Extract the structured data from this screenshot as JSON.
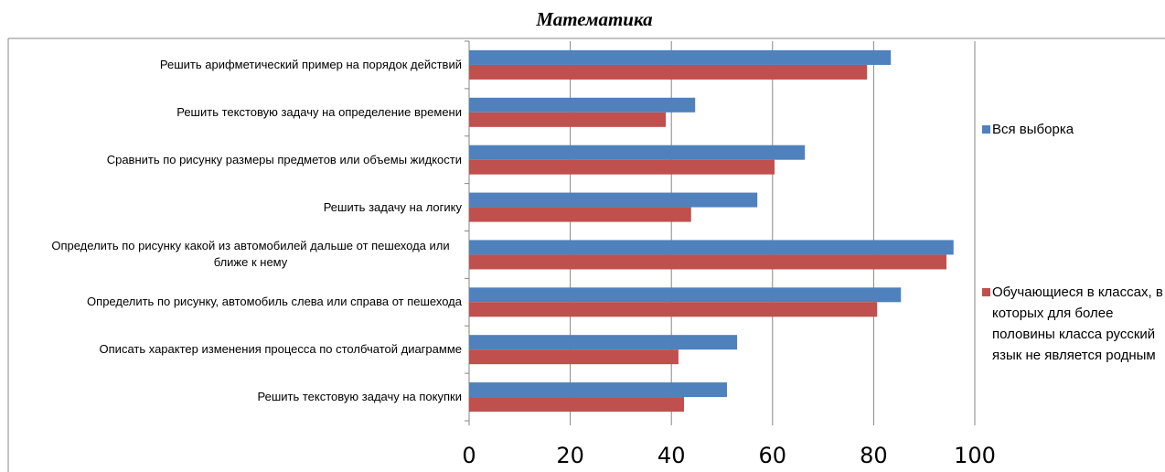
{
  "chart_data": {
    "type": "barh",
    "title": "Математика",
    "categories": [
      "Решить арифметический пример на порядок действий",
      "Решить текстовую задачу на определение времени",
      "Сравнить по рисунку размеры предметов или объемы жидкости",
      "Решить задачу на логику",
      "Определить по рисунку какой из автомобилей дальше от пешехода или ближе к нему",
      "Определить по рисунку, автомобиль слева или справа от пешехода",
      "Описать характер изменения процесса по столбчатой диаграмме",
      "Решить текстовую задачу на покупки"
    ],
    "series": [
      {
        "name": "Вся выборка",
        "color": "#4f81bd",
        "values": [
          83.4,
          44.7,
          66.4,
          57,
          95.8,
          85.4,
          53,
          51
        ]
      },
      {
        "name": "Обучающиеся в классах, в которых для более половины класса русский язык не является родным",
        "color": "#c0504d",
        "values": [
          78.7,
          38.9,
          60.4,
          43.9,
          94.4,
          80.7,
          41.4,
          42.5
        ]
      }
    ],
    "xlim": [
      0,
      100
    ],
    "xticks": [
      0,
      20,
      40,
      60,
      80,
      100
    ],
    "grid": true,
    "legend": "right"
  }
}
